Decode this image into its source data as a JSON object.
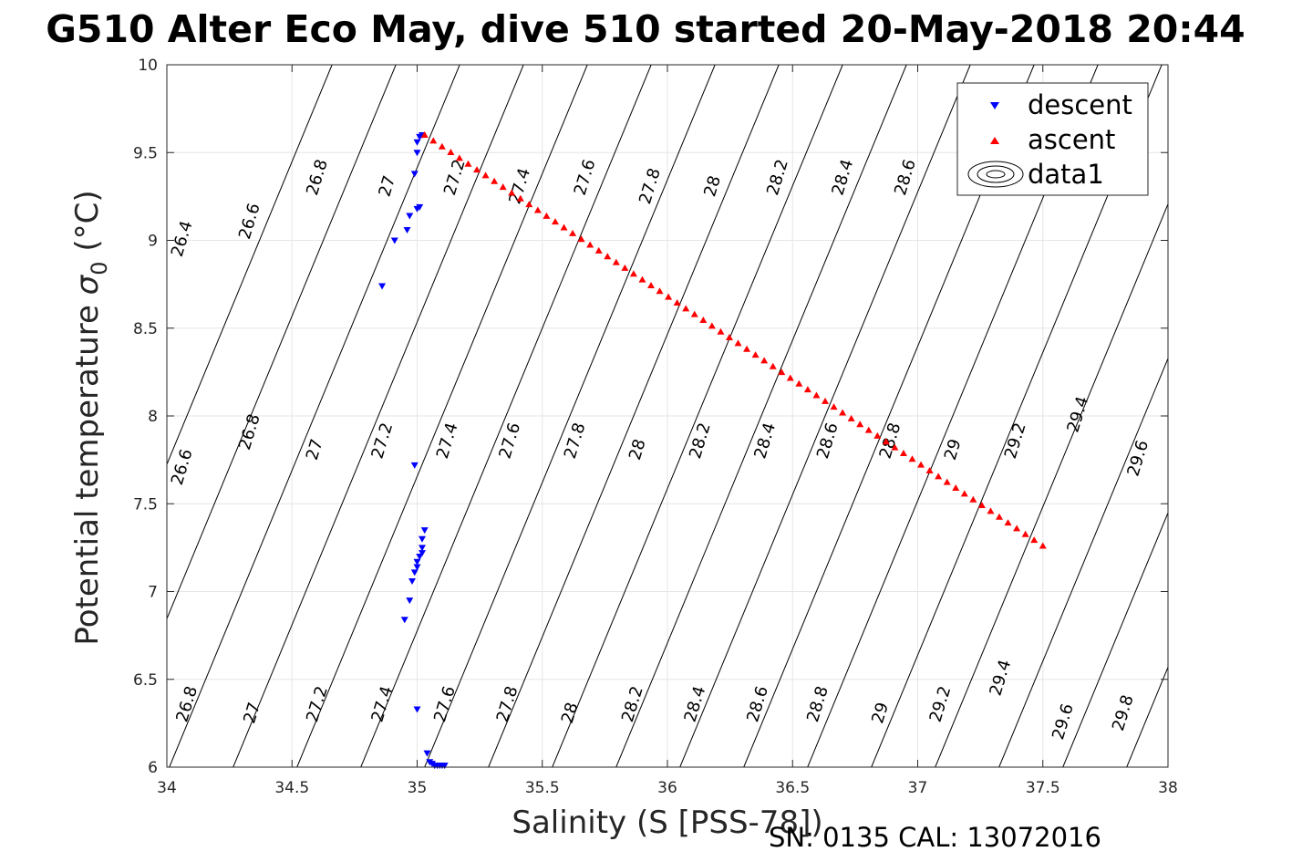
{
  "chart_data": {
    "type": "scatter",
    "title": "G510 Alter Eco May, dive 510 started 20-May-2018 20:44",
    "xlabel": "Salinity (S [PSS-78])",
    "ylabel_main": "Potential temperature ",
    "ylabel_sym": "σ",
    "ylabel_sub": "0",
    "ylabel_unit": " (°C)",
    "xlim": [
      34,
      38
    ],
    "ylim": [
      6,
      10
    ],
    "xticks": [
      "34",
      "34.5",
      "35",
      "35.5",
      "36",
      "36.5",
      "37",
      "37.5",
      "38"
    ],
    "yticks": [
      "6",
      "6.5",
      "7",
      "7.5",
      "8",
      "8.5",
      "9",
      "9.5",
      "10"
    ],
    "grid": true,
    "legend_position": "top-right",
    "legend": [
      "descent",
      "ascent",
      "data1"
    ],
    "footer": "SN: 0135  CAL: 13072016",
    "colors": {
      "descent": "#0000ff",
      "ascent": "#ff0000",
      "contour": "#000000",
      "grid": "#e6e6e6"
    },
    "series": [
      {
        "name": "descent",
        "marker": "triangle-down",
        "points": [
          [
            35.01,
            9.59
          ],
          [
            35.02,
            9.6
          ],
          [
            35.0,
            9.56
          ],
          [
            35.0,
            9.5
          ],
          [
            34.99,
            9.38
          ],
          [
            35.01,
            9.19
          ],
          [
            35.0,
            9.18
          ],
          [
            34.97,
            9.14
          ],
          [
            34.96,
            9.06
          ],
          [
            34.91,
            9.0
          ],
          [
            34.86,
            8.74
          ],
          [
            34.99,
            7.72
          ],
          [
            35.03,
            7.35
          ],
          [
            35.02,
            7.3
          ],
          [
            35.02,
            7.25
          ],
          [
            35.02,
            7.22
          ],
          [
            35.01,
            7.2
          ],
          [
            35.0,
            7.17
          ],
          [
            35.0,
            7.14
          ],
          [
            34.99,
            7.11
          ],
          [
            34.98,
            7.06
          ],
          [
            34.97,
            6.95
          ],
          [
            34.95,
            6.84
          ],
          [
            35.0,
            6.33
          ],
          [
            35.04,
            6.08
          ],
          [
            35.05,
            6.03
          ],
          [
            35.06,
            6.02
          ],
          [
            35.07,
            6.01
          ],
          [
            35.08,
            6.01
          ],
          [
            35.09,
            6.01
          ],
          [
            35.1,
            6.01
          ],
          [
            35.11,
            6.01
          ]
        ]
      },
      {
        "name": "ascent",
        "marker": "triangle-up",
        "from": [
          35.03,
          9.6
        ],
        "to": [
          37.5,
          7.26
        ],
        "count": 72
      }
    ],
    "contours": [
      {
        "label": "26.4",
        "label_pts": [
          [
            34.08,
            9.0
          ]
        ]
      },
      {
        "label": "26.6",
        "label_pts": [
          [
            34.35,
            9.1
          ],
          [
            34.08,
            7.7
          ]
        ]
      },
      {
        "label": "26.8",
        "label_pts": [
          [
            34.62,
            9.35
          ],
          [
            34.35,
            7.9
          ],
          [
            34.1,
            6.35
          ]
        ]
      },
      {
        "label": "27",
        "label_pts": [
          [
            34.9,
            9.3
          ],
          [
            34.61,
            7.8
          ],
          [
            34.36,
            6.3
          ]
        ]
      },
      {
        "label": "27.2",
        "label_pts": [
          [
            35.17,
            9.35
          ],
          [
            34.88,
            7.85
          ],
          [
            34.62,
            6.35
          ]
        ]
      },
      {
        "label": "27.4",
        "label_pts": [
          [
            35.43,
            9.3
          ],
          [
            35.14,
            7.85
          ],
          [
            34.88,
            6.35
          ]
        ]
      },
      {
        "label": "27.6",
        "label_pts": [
          [
            35.69,
            9.35
          ],
          [
            35.39,
            7.85
          ],
          [
            35.13,
            6.35
          ]
        ]
      },
      {
        "label": "27.8",
        "label_pts": [
          [
            35.95,
            9.3
          ],
          [
            35.65,
            7.85
          ],
          [
            35.38,
            6.35
          ]
        ]
      },
      {
        "label": "28",
        "label_pts": [
          [
            36.2,
            9.3
          ],
          [
            35.9,
            7.8
          ],
          [
            35.63,
            6.3
          ]
        ]
      },
      {
        "label": "28.2",
        "label_pts": [
          [
            36.46,
            9.35
          ],
          [
            36.15,
            7.85
          ],
          [
            35.88,
            6.35
          ]
        ]
      },
      {
        "label": "28.4",
        "label_pts": [
          [
            36.72,
            9.35
          ],
          [
            36.41,
            7.85
          ],
          [
            36.13,
            6.35
          ]
        ]
      },
      {
        "label": "28.6",
        "label_pts": [
          [
            36.97,
            9.35
          ],
          [
            36.66,
            7.85
          ],
          [
            36.38,
            6.35
          ]
        ]
      },
      {
        "label": "28.8",
        "label_pts": [
          [
            36.91,
            7.85
          ],
          [
            36.62,
            6.35
          ]
        ]
      },
      {
        "label": "29",
        "label_pts": [
          [
            37.16,
            7.8
          ],
          [
            36.87,
            6.3
          ]
        ]
      },
      {
        "label": "29.2",
        "label_pts": [
          [
            37.41,
            7.85
          ],
          [
            37.11,
            6.35
          ]
        ]
      },
      {
        "label": "29.4",
        "label_pts": [
          [
            37.66,
            8.0
          ],
          [
            37.35,
            6.5
          ]
        ]
      },
      {
        "label": "29.6",
        "label_pts": [
          [
            37.9,
            7.75
          ],
          [
            37.6,
            6.25
          ]
        ]
      },
      {
        "label": "29.8",
        "label_pts": [
          [
            37.84,
            6.3
          ]
        ]
      }
    ]
  }
}
